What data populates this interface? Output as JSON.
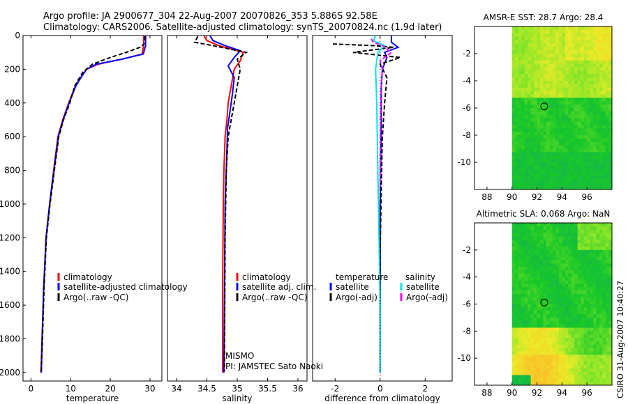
{
  "header": {
    "line1": "Argo profile: JA 2900677_304 22-Aug-2007 20070826_353 5.886S 92.58E",
    "line2": "Climatology: CARS2006. Satellite-adjusted climatology: synTS_20070824.nc (1.9d later)"
  },
  "side_label": "CSIRO 31-Aug-2007 10:40:27",
  "colors": {
    "climatology": "#ff0000",
    "satellite": "#0000ff",
    "argo": "#000000",
    "salinity_satellite": "#00e5ee",
    "salinity_argo": "#ff00ff"
  },
  "chart_data": [
    {
      "id": "temperature",
      "type": "line",
      "xlabel": "temperature",
      "ylabel": "",
      "xlim": [
        -2,
        33
      ],
      "ylim": [
        2050,
        0
      ],
      "xticks": [
        0,
        10,
        20,
        30
      ],
      "yticks": [
        0,
        200,
        400,
        600,
        800,
        1000,
        1200,
        1400,
        1600,
        1800,
        2000
      ],
      "legend": [
        "climatology",
        "satellite-adjusted climatology",
        "Argo(..raw -QC)"
      ],
      "series": [
        {
          "name": "climatology",
          "color": "#ff0000",
          "dash": "",
          "x": [
            28.4,
            28.4,
            28.0,
            23.0,
            17.0,
            14.0,
            12.5,
            11.2,
            9.5,
            8.0,
            6.8,
            5.7,
            4.7,
            3.8,
            3.2,
            2.8,
            2.5
          ],
          "y": [
            0,
            60,
            110,
            140,
            170,
            200,
            250,
            300,
            400,
            500,
            600,
            800,
            1000,
            1200,
            1500,
            1800,
            2000
          ]
        },
        {
          "name": "satellite-adjusted climatology",
          "color": "#0000ff",
          "dash": "",
          "x": [
            28.9,
            28.9,
            28.3,
            23.0,
            16.5,
            14.0,
            12.6,
            11.3,
            9.6,
            8.1,
            6.9,
            5.8,
            4.7,
            3.8,
            3.2,
            2.8,
            2.6
          ],
          "y": [
            0,
            60,
            110,
            140,
            170,
            200,
            250,
            300,
            400,
            500,
            600,
            800,
            1000,
            1200,
            1500,
            1800,
            2000
          ]
        },
        {
          "name": "Argo(..raw -QC)",
          "color": "#000000",
          "dash": "6,3",
          "x": [
            28.7,
            28.5,
            27.5,
            24.0,
            20.0,
            15.5,
            13.0,
            11.0,
            9.8,
            8.2,
            7.0,
            5.9,
            4.8,
            3.9,
            3.3,
            2.9,
            2.6
          ],
          "y": [
            5,
            50,
            70,
            100,
            130,
            170,
            220,
            300,
            400,
            500,
            600,
            800,
            1000,
            1200,
            1500,
            1800,
            1990
          ]
        }
      ]
    },
    {
      "id": "salinity",
      "type": "line",
      "xlabel": "salinity",
      "xlim": [
        33.85,
        36.15
      ],
      "ylim": [
        2050,
        0
      ],
      "xticks": [
        34,
        34.5,
        35,
        35.5,
        36
      ],
      "legend": [
        "climatology",
        "satellite adj. clim.",
        "Argo(..raw -QC)"
      ],
      "annotation": [
        "MISMO",
        "PI: JAMSTEC Sato Naoki"
      ],
      "series": [
        {
          "name": "climatology",
          "color": "#ff0000",
          "dash": "",
          "x": [
            34.45,
            34.5,
            34.7,
            35.1,
            35.05,
            34.95,
            34.9,
            34.85,
            34.83,
            34.8,
            34.78,
            34.77,
            34.76,
            34.76
          ],
          "y": [
            0,
            30,
            60,
            100,
            150,
            200,
            300,
            400,
            500,
            600,
            800,
            1000,
            1500,
            2000
          ]
        },
        {
          "name": "satellite adj. clim.",
          "color": "#0000ff",
          "dash": "",
          "x": [
            34.55,
            34.6,
            34.8,
            35.05,
            34.95,
            34.85,
            34.95,
            34.92,
            34.88,
            34.84,
            34.82,
            34.8,
            34.79,
            34.78
          ],
          "y": [
            0,
            30,
            60,
            90,
            130,
            180,
            250,
            350,
            450,
            550,
            800,
            1000,
            1500,
            2000
          ]
        },
        {
          "name": "Argo(..raw -QC)",
          "color": "#000000",
          "dash": "6,3",
          "x": [
            34.35,
            34.3,
            34.6,
            35.15,
            35.0,
            35.05,
            35.0,
            34.95,
            34.9,
            34.85,
            34.82,
            34.8,
            34.79
          ],
          "y": [
            5,
            40,
            60,
            100,
            140,
            200,
            300,
            400,
            500,
            600,
            800,
            1200,
            1990
          ]
        }
      ]
    },
    {
      "id": "difference",
      "type": "line",
      "xlabel": "difference from climatology",
      "xlim": [
        -3,
        3.2
      ],
      "ylim": [
        2050,
        0
      ],
      "xticks": [
        -2,
        0,
        2
      ],
      "legend_titles": [
        "temperature",
        "salinity"
      ],
      "legend": [
        "satellite",
        "Argo(-adj)",
        "satellite",
        "Argo(-adj)"
      ],
      "series": [
        {
          "name": "temperature satellite",
          "color": "#0000ff",
          "dash": "",
          "x": [
            0.5,
            0.5,
            0.8,
            0.2,
            0.3,
            0.1,
            0.05,
            0.05,
            0.0,
            0.0
          ],
          "y": [
            0,
            40,
            70,
            100,
            130,
            200,
            300,
            500,
            1000,
            2000
          ]
        },
        {
          "name": "temperature Argo(-adj)",
          "color": "#000000",
          "dash": "6,3",
          "x": [
            -2.1,
            -0.3,
            0.6,
            -1.2,
            0.9,
            0.0,
            0.3,
            0.2,
            0.1,
            0.05,
            0.0,
            0.0
          ],
          "y": [
            50,
            60,
            70,
            100,
            130,
            170,
            250,
            400,
            600,
            900,
            1300,
            1990
          ]
        },
        {
          "name": "salinity satellite",
          "color": "#00e5ee",
          "dash": "",
          "x": [
            -0.2,
            -0.3,
            0.2,
            -0.1,
            -0.2,
            -0.15,
            -0.1,
            -0.05,
            0.0,
            0.0
          ],
          "y": [
            0,
            30,
            60,
            100,
            200,
            400,
            800,
            1200,
            1600,
            2000
          ]
        },
        {
          "name": "salinity Argo(-adj)",
          "color": "#ff00ff",
          "dash": "6,3",
          "x": [
            -0.4,
            -0.3,
            0.1,
            0.5,
            0.0,
            0.1,
            0.05,
            0.02,
            0.0
          ],
          "y": [
            20,
            40,
            60,
            100,
            150,
            200,
            300,
            500,
            900
          ]
        }
      ]
    },
    {
      "id": "sst-map",
      "type": "heatmap",
      "title": "AMSR-E SST: 28.7 Argo: 28.4",
      "xlim": [
        87,
        98
      ],
      "ylim": [
        -12,
        0
      ],
      "xticks": [
        88,
        90,
        92,
        94,
        96
      ],
      "yticks": [
        -2,
        -4,
        -6,
        -8,
        -10
      ],
      "data_xrange": [
        90,
        98
      ],
      "marker": {
        "lon": 92.58,
        "lat": -5.886
      }
    },
    {
      "id": "sla-map",
      "type": "heatmap",
      "title": "Altimetric SLA: 0.068 Argo: NaN",
      "xlim": [
        87,
        98
      ],
      "ylim": [
        -12,
        0
      ],
      "xticks": [
        88,
        90,
        92,
        94,
        96
      ],
      "yticks": [
        -2,
        -4,
        -6,
        -8,
        -10
      ],
      "data_xrange": [
        90,
        98
      ],
      "marker": {
        "lon": 92.58,
        "lat": -5.886
      }
    }
  ]
}
